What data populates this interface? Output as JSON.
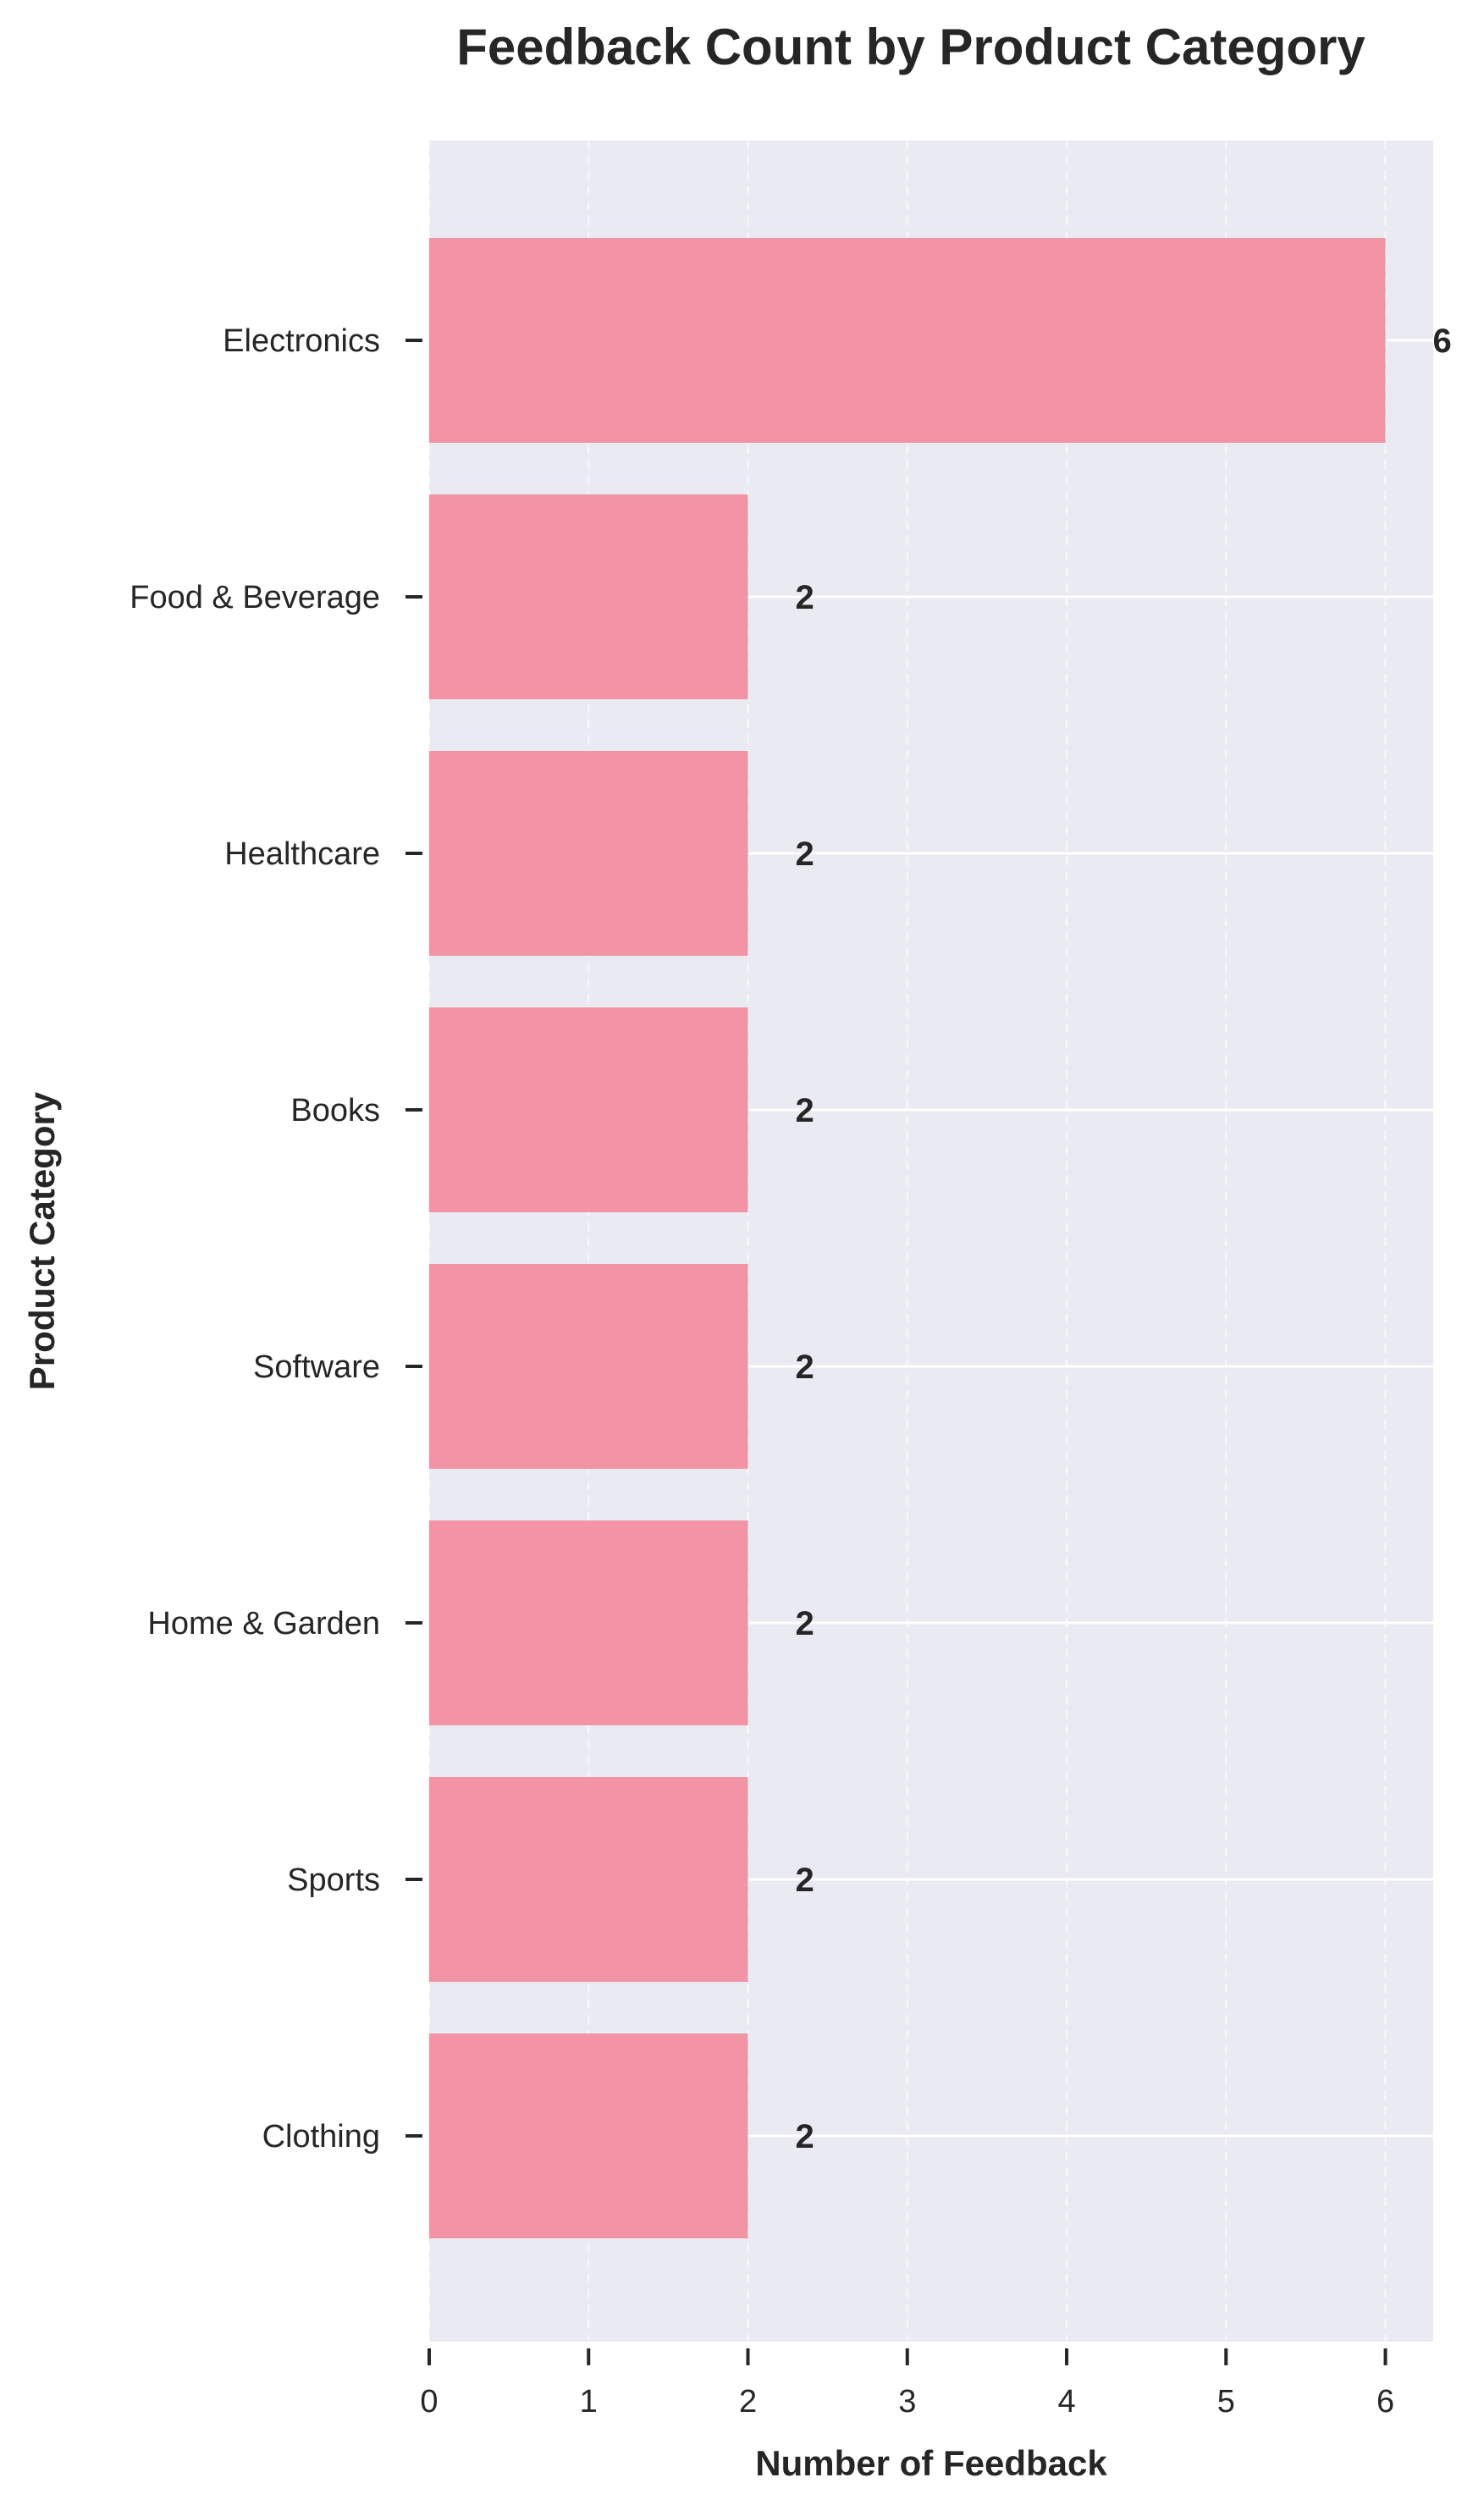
{
  "chart_data": {
    "type": "bar",
    "orientation": "horizontal",
    "title": "Feedback Count by Product Category",
    "xlabel": "Number of Feedback",
    "ylabel": "Product Category",
    "categories": [
      "Electronics",
      "Food & Beverage",
      "Healthcare",
      "Books",
      "Software",
      "Home & Garden",
      "Sports",
      "Clothing"
    ],
    "values": [
      6,
      2,
      2,
      2,
      2,
      2,
      2,
      2
    ],
    "xlim": [
      0,
      6.3
    ],
    "xticks": [
      "0",
      "1",
      "2",
      "3",
      "4",
      "5",
      "6"
    ],
    "grid": true,
    "legend": "none",
    "colors": {
      "bar": "#f294a6",
      "plot_background": "#eaeaf2",
      "grid": "#ffffff",
      "text": "#262626"
    }
  }
}
